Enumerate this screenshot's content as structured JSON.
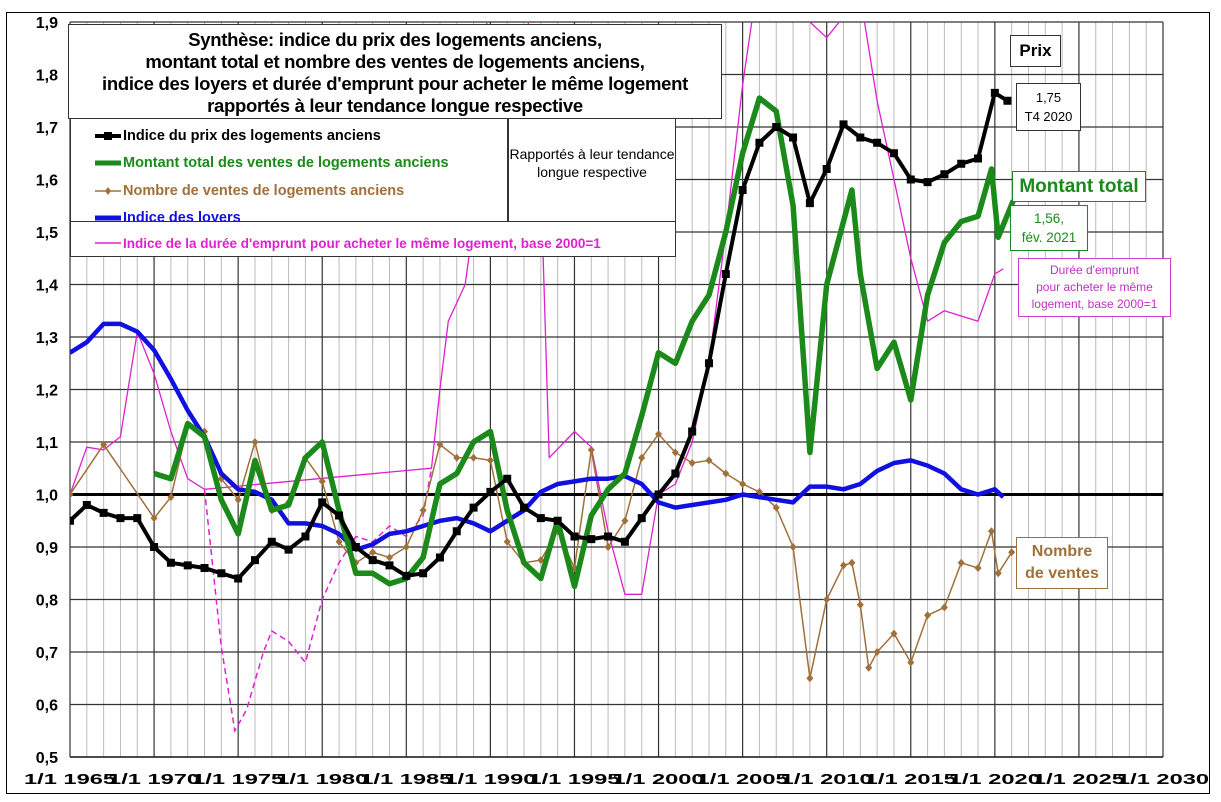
{
  "chart_data": {
    "type": "line",
    "title": "Synthèse: indice du prix des logements anciens, montant total et nombre des ventes de logements anciens, indice des loyers et durée d'emprunt pour acheter le même logement rapportés à leur tendance longue respective",
    "title_lines": [
      "Synthèse: indice du prix des logements anciens,",
      "montant total et nombre des ventes de logements anciens,",
      "indice des loyers et durée d'emprunt pour acheter le même logement",
      "rapportés à leur tendance longue respective"
    ],
    "subtitle_box": "Rapportés à leur tendance longue respective",
    "xlim": [
      1965,
      2030
    ],
    "ylim": [
      0.5,
      1.9
    ],
    "x_ticks": [
      "1/1 1965",
      "1/1 1970",
      "1/1 1975",
      "1/1 1980",
      "1/1 1985",
      "1/1 1990",
      "1/1 1995",
      "1/1 2000",
      "1/1 2005",
      "1/1 2010",
      "1/1 2015",
      "1/1 2020",
      "1/1 2025",
      "1/1 2030"
    ],
    "y_ticks": [
      "0,5",
      "0,6",
      "0,7",
      "0,8",
      "0,9",
      "1,0",
      "1,1",
      "1,2",
      "1,3",
      "1,4",
      "1,5",
      "1,6",
      "1,7",
      "1,8",
      "1,9"
    ],
    "grid": true,
    "reference_line": 1.0,
    "legend_placement": "top-left",
    "series": [
      {
        "name": "Indice du prix des logements anciens",
        "color": "#000000",
        "marker": "square",
        "x": [
          1965,
          1966,
          1967,
          1968,
          1969,
          1970,
          1971,
          1972,
          1973,
          1974,
          1975,
          1976,
          1977,
          1978,
          1979,
          1980,
          1981,
          1982,
          1983,
          1984,
          1985,
          1986,
          1987,
          1988,
          1989,
          1990,
          1991,
          1992,
          1993,
          1994,
          1995,
          1996,
          1997,
          1998,
          1999,
          2000,
          2001,
          2002,
          2003,
          2004,
          2005,
          2006,
          2007,
          2008,
          2009,
          2010,
          2011,
          2012,
          2013,
          2014,
          2015,
          2016,
          2017,
          2018,
          2019,
          2020,
          2020.75
        ],
        "y": [
          0.95,
          0.98,
          0.965,
          0.955,
          0.955,
          0.9,
          0.87,
          0.865,
          0.86,
          0.85,
          0.84,
          0.875,
          0.91,
          0.895,
          0.92,
          0.985,
          0.96,
          0.9,
          0.875,
          0.865,
          0.845,
          0.85,
          0.88,
          0.93,
          0.975,
          1.005,
          1.03,
          0.975,
          0.955,
          0.95,
          0.92,
          0.915,
          0.92,
          0.91,
          0.955,
          1.0,
          1.04,
          1.12,
          1.25,
          1.42,
          1.58,
          1.67,
          1.7,
          1.68,
          1.555,
          1.62,
          1.705,
          1.68,
          1.67,
          1.65,
          1.6,
          1.595,
          1.61,
          1.63,
          1.64,
          1.765,
          1.75
        ]
      },
      {
        "name": "Montant total des ventes de logements anciens",
        "color": "#1b8a1b",
        "x": [
          1970,
          1971,
          1972,
          1973,
          1974,
          1975,
          1976,
          1977,
          1978,
          1979,
          1980,
          1981,
          1982,
          1983,
          1984,
          1985,
          1986,
          1987,
          1988,
          1989,
          1990,
          1991,
          1992,
          1993,
          1994,
          1995,
          1996,
          1997,
          1998,
          1999,
          2000,
          2001,
          2002,
          2003,
          2004,
          2005,
          2006,
          2007,
          2008,
          2009,
          2010,
          2011,
          2011.5,
          2012,
          2013,
          2014,
          2015,
          2016,
          2017,
          2018,
          2019,
          2019.8,
          2020.2,
          2021.1
        ],
        "y": [
          1.04,
          1.03,
          1.135,
          1.11,
          0.99,
          0.925,
          1.065,
          0.97,
          0.98,
          1.07,
          1.1,
          0.97,
          0.85,
          0.85,
          0.83,
          0.84,
          0.88,
          1.02,
          1.04,
          1.1,
          1.12,
          0.97,
          0.87,
          0.84,
          0.95,
          0.825,
          0.96,
          1.01,
          1.04,
          1.15,
          1.27,
          1.25,
          1.33,
          1.38,
          1.5,
          1.65,
          1.755,
          1.73,
          1.55,
          1.08,
          1.4,
          1.52,
          1.58,
          1.42,
          1.24,
          1.29,
          1.18,
          1.38,
          1.48,
          1.52,
          1.53,
          1.62,
          1.49,
          1.56
        ]
      },
      {
        "name": "Nombre de ventes de logements anciens",
        "color": "#a0703a",
        "marker": "diamond",
        "x": [
          1965,
          1967,
          1970,
          1971,
          1972,
          1973,
          1974,
          1975,
          1976,
          1977,
          1978,
          1979,
          1980,
          1981,
          1982,
          1983,
          1984,
          1985,
          1986,
          1987,
          1988,
          1989,
          1990,
          1991,
          1992,
          1993,
          1994,
          1995,
          1996,
          1997,
          1998,
          1999,
          2000,
          2001,
          2002,
          2003,
          2004,
          2005,
          2006,
          2007,
          2008,
          2009,
          2010,
          2011,
          2011.5,
          2012,
          2012.5,
          2013,
          2014,
          2015,
          2016,
          2017,
          2018,
          2019,
          2019.8,
          2020.2,
          2021
        ],
        "y": [
          1.0,
          1.095,
          0.955,
          0.995,
          1.13,
          1.12,
          1.03,
          0.99,
          1.1,
          0.97,
          0.985,
          1.07,
          1.025,
          0.91,
          0.87,
          0.89,
          0.88,
          0.9,
          0.97,
          1.095,
          1.07,
          1.07,
          1.065,
          0.91,
          0.87,
          0.875,
          0.93,
          0.86,
          1.085,
          0.9,
          0.95,
          1.07,
          1.115,
          1.08,
          1.06,
          1.065,
          1.04,
          1.02,
          1.005,
          0.975,
          0.9,
          0.65,
          0.8,
          0.865,
          0.87,
          0.79,
          0.67,
          0.7,
          0.735,
          0.68,
          0.77,
          0.785,
          0.87,
          0.86,
          0.93,
          0.85,
          0.89
        ]
      },
      {
        "name": "Indice des loyers",
        "color": "#1010e0",
        "x": [
          1965,
          1966,
          1967,
          1968,
          1969,
          1970,
          1971,
          1972,
          1973,
          1974,
          1975,
          1976,
          1977,
          1978,
          1979,
          1980,
          1981,
          1982,
          1983,
          1984,
          1985,
          1986,
          1987,
          1988,
          1989,
          1990,
          1991,
          1992,
          1993,
          1994,
          1995,
          1996,
          1997,
          1998,
          1999,
          2000,
          2001,
          2002,
          2003,
          2004,
          2005,
          2006,
          2007,
          2008,
          2009,
          2010,
          2011,
          2012,
          2013,
          2014,
          2015,
          2016,
          2017,
          2018,
          2019,
          2020,
          2020.5
        ],
        "y": [
          1.27,
          1.29,
          1.325,
          1.325,
          1.31,
          1.275,
          1.22,
          1.16,
          1.11,
          1.04,
          1.01,
          1.005,
          0.99,
          0.945,
          0.945,
          0.94,
          0.925,
          0.895,
          0.905,
          0.925,
          0.93,
          0.94,
          0.95,
          0.955,
          0.945,
          0.93,
          0.95,
          0.97,
          1.005,
          1.02,
          1.025,
          1.03,
          1.03,
          1.035,
          1.02,
          0.985,
          0.975,
          0.98,
          0.985,
          0.99,
          1.0,
          0.995,
          0.99,
          0.985,
          1.015,
          1.015,
          1.01,
          1.02,
          1.045,
          1.06,
          1.065,
          1.055,
          1.04,
          1.01,
          1.0,
          1.01,
          0.995
        ]
      },
      {
        "name": "Indice de la durée d'emprunt pour acheter le même logement, base 2000=1",
        "color": "#e020d0",
        "x": [
          1965,
          1966,
          1967,
          1968,
          1969,
          1970,
          1971,
          1972,
          1973,
          1986.5,
          1987,
          1987.5,
          1988.5,
          1989,
          1990,
          1992,
          1993,
          1993.5,
          1995,
          1996,
          1997,
          1998,
          1999,
          2000,
          2001,
          2002,
          2003,
          2004,
          2005,
          2006,
          2009,
          2010,
          2012,
          2013,
          2014,
          2015,
          2016,
          2017,
          2018,
          2019,
          2020,
          2020.5
        ],
        "y": [
          1.0,
          1.09,
          1.085,
          1.11,
          1.31,
          1.23,
          1.12,
          1.03,
          1.01,
          1.05,
          1.2,
          1.33,
          1.4,
          1.52,
          2.0,
          2.0,
          1.6,
          1.07,
          1.12,
          1.09,
          0.93,
          0.81,
          0.81,
          1.0,
          1.02,
          1.1,
          1.25,
          1.5,
          1.78,
          2.0,
          1.9,
          1.87,
          1.95,
          1.75,
          1.6,
          1.45,
          1.33,
          1.35,
          1.34,
          1.33,
          1.42,
          1.43
        ],
        "dashed_x": [
          1973,
          1974,
          1974.8,
          1975.5,
          1976.5,
          1977,
          1978,
          1979,
          1980,
          1981,
          1982,
          1983,
          1984,
          1985,
          1986,
          1986.5
        ],
        "dashed_y": [
          1.01,
          0.71,
          0.55,
          0.59,
          0.7,
          0.74,
          0.72,
          0.68,
          0.8,
          0.87,
          0.92,
          0.91,
          0.94,
          0.92,
          0.96,
          1.05
        ]
      }
    ],
    "annotations": {
      "prix": "Prix",
      "prix_value_1": "1,75",
      "prix_value_2": "T4 2020",
      "montant": "Montant total",
      "montant_value_1": "1,56,",
      "montant_value_2": "fév. 2021",
      "duree_1": "Durée d'emprunt",
      "duree_2": "pour acheter le même",
      "duree_3": "logement, base 2000=1",
      "nombre_1": "Nombre",
      "nombre_2": "de ventes"
    }
  }
}
